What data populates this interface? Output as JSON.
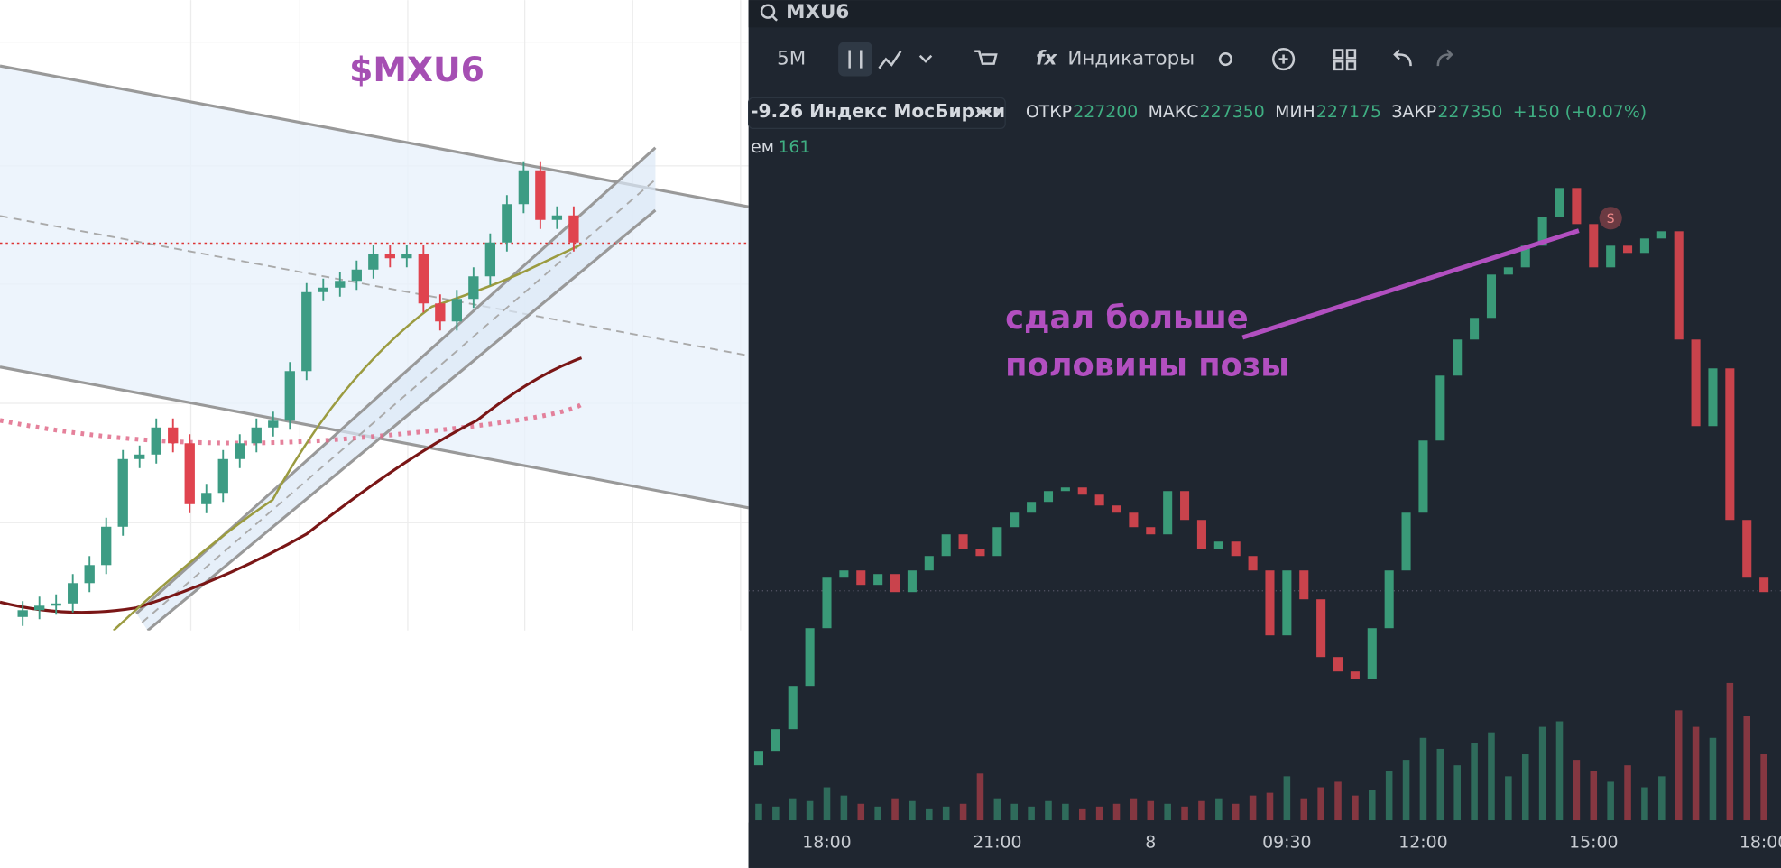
{
  "left_chart": {
    "type": "candlestick",
    "title": "$MXU6",
    "open": [
      226410,
      226425,
      226435,
      226440,
      226485,
      226525,
      226610,
      226760,
      226770,
      226830,
      226795,
      226660,
      226685,
      226760,
      226795,
      226830,
      226845,
      226955,
      227130,
      227140,
      227155,
      227180,
      227215,
      227205,
      227215,
      227105,
      227065,
      227115,
      227165,
      227240,
      227325,
      227400,
      227290,
      227300
    ],
    "high": [
      226445,
      226455,
      226460,
      226505,
      226545,
      226630,
      226780,
      226790,
      226850,
      226850,
      226815,
      226705,
      226780,
      226815,
      226850,
      226865,
      226975,
      227150,
      227160,
      227175,
      227200,
      227235,
      227235,
      227235,
      227235,
      227125,
      227135,
      227185,
      227260,
      227345,
      227420,
      227420,
      227320,
      227320
    ],
    "low": [
      226390,
      226405,
      226415,
      226420,
      226465,
      226505,
      226590,
      226740,
      226750,
      226775,
      226640,
      226640,
      226665,
      226740,
      226775,
      226810,
      226825,
      226935,
      227110,
      227120,
      227135,
      227160,
      227185,
      227185,
      227085,
      227045,
      227045,
      227095,
      227145,
      227220,
      227305,
      227270,
      227270,
      227220
    ],
    "close": [
      226425,
      226435,
      226440,
      226485,
      226525,
      226610,
      226760,
      226770,
      226830,
      226795,
      226660,
      226685,
      226760,
      226795,
      226830,
      226845,
      226955,
      227130,
      227140,
      227155,
      227180,
      227215,
      227205,
      227215,
      227105,
      227065,
      227115,
      227165,
      227240,
      227325,
      227400,
      227290,
      227300,
      227240
    ],
    "ylim": [
      226380,
      227450
    ],
    "up_color": "#3d9c84",
    "down_color": "#e0444f"
  },
  "right_panel": {
    "search": "MXU6",
    "interval": "5M",
    "indicators": "Индикаторы",
    "instrument": "-9.26 Индекс МосБиржи",
    "ohlc": [
      {
        "label": "ОТКР",
        "value": 227200
      },
      {
        "label": "МАКС",
        "value": 227350
      },
      {
        "label": "МИН",
        "value": 227175
      },
      {
        "label": "ЗАКР",
        "value": 227350
      }
    ],
    "change": "+150 (+0.07%)",
    "volume_label": "ем",
    "volume_value": 161,
    "signal": "S",
    "annotation": [
      "сдал больше",
      "половины позы"
    ]
  },
  "right_chart": {
    "type": "candlestick",
    "categories": [
      null,
      null,
      null,
      null,
      "18:00",
      null,
      null,
      null,
      null,
      null,
      null,
      null,
      null,
      null,
      "21:00",
      null,
      null,
      null,
      null,
      null,
      null,
      null,
      null,
      "8",
      null,
      null,
      null,
      null,
      null,
      null,
      null,
      "09:30",
      null,
      null,
      null,
      null,
      null,
      null,
      null,
      "12:00",
      null,
      null,
      null,
      null,
      null,
      null,
      null,
      null,
      null,
      "15:00",
      null,
      null,
      null,
      null,
      null,
      null,
      null,
      null,
      null,
      "18:00"
    ],
    "open": [
      226610,
      226630,
      226660,
      226720,
      226800,
      226870,
      226880,
      226860,
      226875,
      226850,
      226880,
      226900,
      226930,
      226910,
      226900,
      226940,
      226960,
      226975,
      226990,
      226995,
      226985,
      226970,
      226960,
      226940,
      226930,
      226990,
      226950,
      226910,
      226920,
      226900,
      226880,
      226790,
      226880,
      226840,
      226760,
      226740,
      226730,
      226800,
      226880,
      226960,
      227060,
      227150,
      227200,
      227230,
      227290,
      227300,
      227330,
      227370,
      227410,
      227360,
      227300,
      227330,
      227320,
      227340,
      227350,
      227200,
      227080,
      227160,
      226950,
      226870
    ],
    "close": [
      226630,
      226660,
      226720,
      226800,
      226870,
      226880,
      226860,
      226875,
      226850,
      226880,
      226900,
      226930,
      226910,
      226900,
      226940,
      226960,
      226975,
      226990,
      226995,
      226985,
      226970,
      226960,
      226940,
      226930,
      226990,
      226950,
      226910,
      226920,
      226900,
      226880,
      226790,
      226880,
      226840,
      226760,
      226740,
      226730,
      226800,
      226880,
      226960,
      227060,
      227150,
      227200,
      227230,
      227290,
      227300,
      227330,
      227370,
      227410,
      227360,
      227300,
      227330,
      227320,
      227340,
      227350,
      227200,
      227080,
      227160,
      226950,
      226870,
      226850
    ],
    "volume": [
      30,
      25,
      40,
      35,
      60,
      45,
      30,
      25,
      40,
      35,
      20,
      25,
      30,
      85,
      40,
      30,
      25,
      35,
      30,
      20,
      25,
      30,
      40,
      35,
      30,
      25,
      35,
      40,
      30,
      45,
      50,
      80,
      40,
      60,
      70,
      45,
      55,
      90,
      110,
      150,
      130,
      100,
      140,
      160,
      80,
      120,
      170,
      180,
      110,
      90,
      70,
      100,
      60,
      80,
      200,
      170,
      150,
      250,
      190,
      120
    ],
    "ylim": [
      226600,
      227450
    ],
    "vlim": [
      0,
      300
    ],
    "up_color": "#3a9a78",
    "down_color": "#c9434c"
  }
}
